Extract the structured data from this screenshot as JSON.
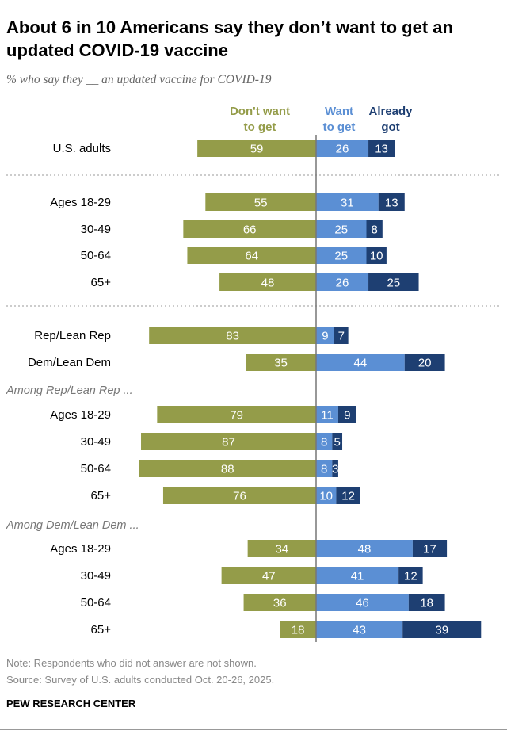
{
  "title": "About 6 in 10 Americans say they don’t want to get an updated COVID-19 vaccine",
  "subtitle": "% who say they __ an updated vaccine for COVID-19",
  "note": "Note: Respondents who did not answer are not shown.",
  "source": "Source: Survey of U.S. adults conducted Oct. 20-26, 2025.",
  "brand": "PEW RESEARCH CENTER",
  "colors": {
    "dont_want": "#949c49",
    "want": "#5b8fd4",
    "already": "#1e3f72"
  },
  "chart_data": {
    "type": "bar",
    "orientation": "horizontal diverging stacked",
    "legend": [
      {
        "name": "Don't want to get",
        "lines": [
          "Don't want",
          "to get"
        ]
      },
      {
        "name": "Want to get",
        "lines": [
          "Want",
          "to get"
        ]
      },
      {
        "name": "Already got",
        "lines": [
          "Already",
          "got"
        ]
      }
    ],
    "group_labels": [
      "Among Rep/Lean Rep ...",
      "Among Dem/Lean Dem ..."
    ],
    "rows": [
      {
        "label": "U.S. adults",
        "dont_want": 59,
        "want": 26,
        "already": 13
      },
      {
        "label": "Ages 18-29",
        "dont_want": 55,
        "want": 31,
        "already": 13
      },
      {
        "label": "30-49",
        "dont_want": 66,
        "want": 25,
        "already": 8
      },
      {
        "label": "50-64",
        "dont_want": 64,
        "want": 25,
        "already": 10
      },
      {
        "label": "65+",
        "dont_want": 48,
        "want": 26,
        "already": 25
      },
      {
        "label": "Rep/Lean Rep",
        "dont_want": 83,
        "want": 9,
        "already": 7
      },
      {
        "label": "Dem/Lean Dem",
        "dont_want": 35,
        "want": 44,
        "already": 20
      },
      {
        "label": "Ages 18-29",
        "group": "Among Rep/Lean Rep ...",
        "dont_want": 79,
        "want": 11,
        "already": 9
      },
      {
        "label": "30-49",
        "group": "Among Rep/Lean Rep ...",
        "dont_want": 87,
        "want": 8,
        "already": 5
      },
      {
        "label": "50-64",
        "group": "Among Rep/Lean Rep ...",
        "dont_want": 88,
        "want": 8,
        "already": 3
      },
      {
        "label": "65+",
        "group": "Among Rep/Lean Rep ...",
        "dont_want": 76,
        "want": 10,
        "already": 12
      },
      {
        "label": "Ages 18-29",
        "group": "Among Dem/Lean Dem ...",
        "dont_want": 34,
        "want": 48,
        "already": 17
      },
      {
        "label": "30-49",
        "group": "Among Dem/Lean Dem ...",
        "dont_want": 47,
        "want": 41,
        "already": 12
      },
      {
        "label": "50-64",
        "group": "Among Dem/Lean Dem ...",
        "dont_want": 36,
        "want": 46,
        "already": 18
      },
      {
        "label": "65+",
        "group": "Among Dem/Lean Dem ...",
        "dont_want": 18,
        "want": 43,
        "already": 39
      }
    ]
  }
}
